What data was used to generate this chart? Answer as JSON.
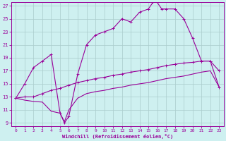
{
  "xlabel": "Windchill (Refroidissement éolien,°C)",
  "bg_color": "#cef0f0",
  "line_color": "#990099",
  "grid_color": "#aacccc",
  "xlim": [
    -0.5,
    23.5
  ],
  "ylim": [
    8.5,
    27.5
  ],
  "xticks": [
    0,
    1,
    2,
    3,
    4,
    5,
    6,
    7,
    8,
    9,
    10,
    11,
    12,
    13,
    14,
    15,
    16,
    17,
    18,
    19,
    20,
    21,
    22,
    23
  ],
  "yticks": [
    9,
    11,
    13,
    15,
    17,
    19,
    21,
    23,
    25,
    27
  ],
  "curve_upper_x": [
    0,
    1,
    2,
    3,
    4,
    5,
    5.5,
    6,
    7,
    8,
    9,
    10,
    11,
    12,
    13,
    14,
    15,
    15.5,
    16,
    16.5,
    17,
    18,
    19,
    20,
    21,
    22,
    23
  ],
  "curve_upper_y": [
    12.8,
    15.0,
    17.5,
    18.5,
    19.5,
    10.5,
    9.0,
    10.0,
    16.5,
    21.0,
    22.5,
    23.0,
    23.5,
    25.0,
    24.5,
    26.0,
    26.5,
    27.5,
    27.5,
    26.5,
    26.5,
    26.5,
    25.0,
    22.0,
    18.5,
    18.5,
    17.0
  ],
  "curve_mid_x": [
    0,
    1,
    2,
    3,
    4,
    5,
    6,
    7,
    8,
    9,
    10,
    11,
    12,
    13,
    14,
    15,
    16,
    17,
    18,
    19,
    20,
    21,
    22,
    23
  ],
  "curve_mid_y": [
    12.8,
    13.0,
    13.0,
    13.5,
    14.0,
    14.3,
    14.8,
    15.2,
    15.5,
    15.8,
    16.0,
    16.3,
    16.5,
    16.8,
    17.0,
    17.2,
    17.5,
    17.8,
    18.0,
    18.2,
    18.3,
    18.5,
    18.5,
    14.5
  ],
  "curve_low_x": [
    0,
    1,
    2,
    3,
    4,
    5,
    5.5,
    6,
    7,
    8,
    9,
    10,
    11,
    12,
    13,
    14,
    15,
    16,
    17,
    18,
    19,
    20,
    21,
    22,
    23
  ],
  "curve_low_y": [
    12.8,
    12.5,
    12.3,
    12.2,
    10.8,
    10.5,
    9.2,
    11.0,
    12.8,
    13.5,
    13.8,
    14.0,
    14.3,
    14.5,
    14.8,
    15.0,
    15.2,
    15.5,
    15.8,
    16.0,
    16.2,
    16.5,
    16.8,
    17.0,
    14.5
  ]
}
